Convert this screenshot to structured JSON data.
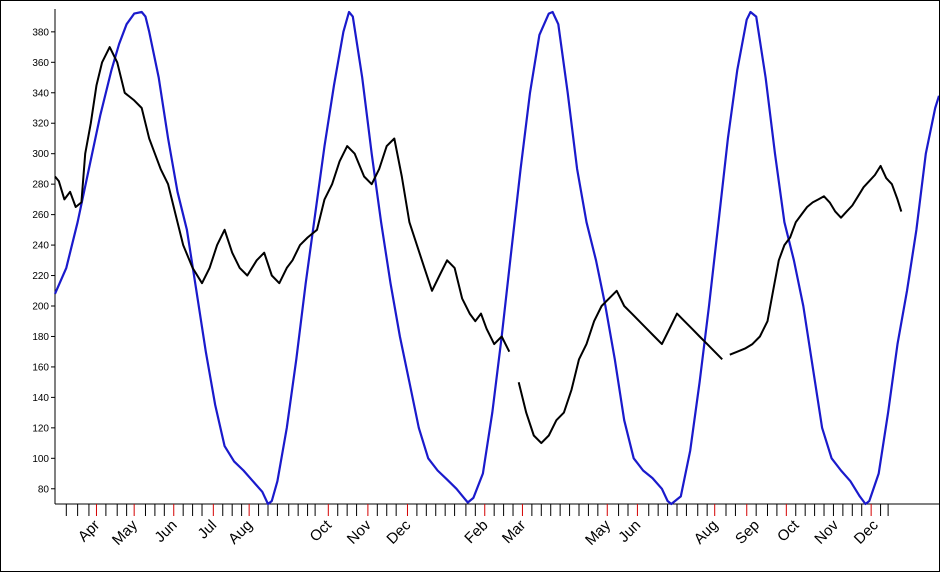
{
  "chart_data": {
    "type": "line",
    "title": "",
    "xlabel": "",
    "ylabel": "",
    "ylim": [
      70,
      395
    ],
    "grid": false,
    "legend": "none",
    "y_ticks": [
      80,
      100,
      120,
      140,
      160,
      180,
      200,
      220,
      240,
      260,
      280,
      300,
      320,
      340,
      360,
      380
    ],
    "x_month_labels": [
      "Apr",
      "May",
      "Jun",
      "Jul",
      "Aug",
      "Oct",
      "Nov",
      "Dec",
      "Feb",
      "Mar",
      "May",
      "Jun",
      "Aug",
      "Sep",
      "Oct",
      "Nov",
      "Dec"
    ],
    "colors": {
      "price_series": "#000000",
      "cycle_series": "#1a1acc",
      "tick_red": "#d40000",
      "tick_black": "#000000"
    },
    "series": [
      {
        "key": "price",
        "x": [
          0,
          4,
          10,
          16,
          22,
          28,
          32,
          38,
          44,
          50,
          58,
          66,
          74,
          84,
          92,
          100,
          106,
          112,
          120,
          128,
          136,
          146,
          156,
          164,
          172,
          180,
          188,
          196,
          204,
          214,
          222,
          230,
          238,
          246,
          252,
          260,
          268,
          278,
          286,
          294,
          302,
          310,
          318,
          328,
          336,
          344,
          352,
          360,
          368,
          376,
          384,
          392,
          400,
          408,
          416,
          424,
          432,
          440,
          446,
          452,
          458,
          466,
          474,
          482,
          492,
          500,
          508,
          516,
          524,
          532,
          540,
          548,
          556,
          564,
          572,
          580,
          588,
          596,
          604,
          612,
          620,
          628,
          636,
          644,
          652,
          660,
          668,
          676,
          684,
          692,
          700,
          708,
          716,
          724,
          732,
          740,
          748,
          756,
          762,
          768,
          774,
          780,
          786,
          792,
          798,
          804,
          810,
          816,
          822,
          828,
          834,
          840,
          846,
          852,
          858,
          864,
          870,
          876,
          882,
          888,
          894,
          898
        ],
        "values": [
          285,
          282,
          270,
          275,
          265,
          268,
          300,
          320,
          345,
          360,
          370,
          360,
          340,
          335,
          330,
          310,
          300,
          290,
          280,
          260,
          240,
          225,
          215,
          225,
          240,
          250,
          235,
          225,
          220,
          230,
          235,
          220,
          215,
          225,
          230,
          240,
          245,
          250,
          270,
          280,
          295,
          305,
          300,
          285,
          280,
          290,
          305,
          310,
          285,
          255,
          240,
          225,
          210,
          220,
          230,
          225,
          205,
          195,
          190,
          195,
          185,
          175,
          180,
          170,
          150,
          130,
          115,
          110,
          115,
          125,
          130,
          145,
          165,
          175,
          190,
          200,
          205,
          210,
          200,
          195,
          190,
          185,
          180,
          175,
          185,
          195,
          190,
          185,
          180,
          175,
          170,
          165,
          168,
          170,
          172,
          175,
          180,
          190,
          210,
          230,
          240,
          245,
          255,
          260,
          265,
          268,
          270,
          272,
          268,
          262,
          258,
          262,
          266,
          272,
          278,
          282,
          286,
          292,
          284,
          280,
          270,
          262
        ],
        "gaps_after_index": [
          63,
          91
        ]
      },
      {
        "key": "cycle",
        "x": [
          0,
          12,
          24,
          36,
          48,
          60,
          68,
          76,
          84,
          92,
          96,
          100,
          110,
          120,
          130,
          140,
          150,
          160,
          170,
          180,
          190,
          200,
          210,
          220,
          226,
          230,
          236,
          246,
          256,
          266,
          276,
          286,
          296,
          306,
          312,
          316,
          326,
          336,
          346,
          356,
          366,
          376,
          386,
          396,
          406,
          416,
          426,
          434,
          438,
          444,
          454,
          464,
          474,
          484,
          494,
          504,
          514,
          524,
          528,
          534,
          544,
          554,
          564,
          574,
          584,
          594,
          604,
          614,
          624,
          634,
          644,
          650,
          654,
          664,
          674,
          684,
          694,
          704,
          714,
          724,
          734,
          738,
          744,
          754,
          764,
          774,
          784,
          794,
          804,
          814,
          824,
          834,
          844,
          854,
          860,
          864,
          874,
          884,
          894,
          904,
          914,
          924,
          934,
          938
        ],
        "values": [
          208,
          225,
          255,
          290,
          325,
          355,
          372,
          385,
          392,
          393,
          390,
          380,
          350,
          310,
          275,
          250,
          210,
          170,
          135,
          108,
          98,
          92,
          85,
          78,
          70,
          72,
          85,
          120,
          165,
          215,
          260,
          305,
          345,
          380,
          393,
          390,
          350,
          300,
          255,
          215,
          180,
          150,
          120,
          100,
          92,
          86,
          80,
          74,
          71,
          74,
          90,
          130,
          180,
          235,
          290,
          340,
          378,
          392,
          393,
          385,
          340,
          290,
          255,
          230,
          200,
          165,
          125,
          100,
          92,
          87,
          80,
          72,
          70,
          75,
          105,
          150,
          200,
          255,
          310,
          355,
          388,
          393,
          390,
          350,
          300,
          255,
          230,
          200,
          160,
          120,
          100,
          92,
          85,
          75,
          70,
          72,
          90,
          130,
          175,
          210,
          250,
          300,
          330,
          338
        ]
      }
    ],
    "x_ticks": [
      {
        "x": 12,
        "c": "b"
      },
      {
        "x": 24,
        "c": "b"
      },
      {
        "x": 36,
        "c": "b"
      },
      {
        "x": 44,
        "c": "r"
      },
      {
        "x": 54,
        "c": "b"
      },
      {
        "x": 66,
        "c": "b"
      },
      {
        "x": 76,
        "c": "b"
      },
      {
        "x": 84,
        "c": "r"
      },
      {
        "x": 96,
        "c": "b"
      },
      {
        "x": 106,
        "c": "b"
      },
      {
        "x": 116,
        "c": "b"
      },
      {
        "x": 126,
        "c": "r"
      },
      {
        "x": 136,
        "c": "b"
      },
      {
        "x": 146,
        "c": "b"
      },
      {
        "x": 156,
        "c": "b"
      },
      {
        "x": 168,
        "c": "r"
      },
      {
        "x": 178,
        "c": "b"
      },
      {
        "x": 188,
        "c": "b"
      },
      {
        "x": 198,
        "c": "b"
      },
      {
        "x": 206,
        "c": "r"
      },
      {
        "x": 216,
        "c": "b"
      },
      {
        "x": 226,
        "c": "b"
      },
      {
        "x": 236,
        "c": "b"
      },
      {
        "x": 248,
        "c": "b"
      },
      {
        "x": 258,
        "c": "b"
      },
      {
        "x": 268,
        "c": "b"
      },
      {
        "x": 276,
        "c": "b"
      },
      {
        "x": 290,
        "c": "r"
      },
      {
        "x": 300,
        "c": "b"
      },
      {
        "x": 310,
        "c": "b"
      },
      {
        "x": 320,
        "c": "b"
      },
      {
        "x": 332,
        "c": "r"
      },
      {
        "x": 342,
        "c": "b"
      },
      {
        "x": 352,
        "c": "b"
      },
      {
        "x": 362,
        "c": "b"
      },
      {
        "x": 374,
        "c": "r"
      },
      {
        "x": 384,
        "c": "b"
      },
      {
        "x": 394,
        "c": "b"
      },
      {
        "x": 404,
        "c": "b"
      },
      {
        "x": 414,
        "c": "b"
      },
      {
        "x": 424,
        "c": "b"
      },
      {
        "x": 436,
        "c": "b"
      },
      {
        "x": 446,
        "c": "b"
      },
      {
        "x": 456,
        "c": "r"
      },
      {
        "x": 466,
        "c": "b"
      },
      {
        "x": 476,
        "c": "b"
      },
      {
        "x": 486,
        "c": "b"
      },
      {
        "x": 496,
        "c": "r"
      },
      {
        "x": 506,
        "c": "b"
      },
      {
        "x": 516,
        "c": "b"
      },
      {
        "x": 526,
        "c": "b"
      },
      {
        "x": 536,
        "c": "b"
      },
      {
        "x": 546,
        "c": "b"
      },
      {
        "x": 556,
        "c": "b"
      },
      {
        "x": 566,
        "c": "b"
      },
      {
        "x": 576,
        "c": "b"
      },
      {
        "x": 586,
        "c": "r"
      },
      {
        "x": 598,
        "c": "b"
      },
      {
        "x": 608,
        "c": "b"
      },
      {
        "x": 618,
        "c": "r"
      },
      {
        "x": 630,
        "c": "b"
      },
      {
        "x": 640,
        "c": "b"
      },
      {
        "x": 650,
        "c": "b"
      },
      {
        "x": 660,
        "c": "b"
      },
      {
        "x": 670,
        "c": "b"
      },
      {
        "x": 682,
        "c": "b"
      },
      {
        "x": 692,
        "c": "b"
      },
      {
        "x": 700,
        "c": "r"
      },
      {
        "x": 712,
        "c": "b"
      },
      {
        "x": 722,
        "c": "b"
      },
      {
        "x": 734,
        "c": "r"
      },
      {
        "x": 744,
        "c": "b"
      },
      {
        "x": 756,
        "c": "b"
      },
      {
        "x": 766,
        "c": "b"
      },
      {
        "x": 776,
        "c": "r"
      },
      {
        "x": 786,
        "c": "b"
      },
      {
        "x": 796,
        "c": "b"
      },
      {
        "x": 806,
        "c": "b"
      },
      {
        "x": 816,
        "c": "b"
      },
      {
        "x": 826,
        "c": "b"
      },
      {
        "x": 836,
        "c": "b"
      },
      {
        "x": 846,
        "c": "b"
      },
      {
        "x": 856,
        "c": "b"
      },
      {
        "x": 866,
        "c": "r"
      },
      {
        "x": 876,
        "c": "b"
      },
      {
        "x": 884,
        "c": "b"
      }
    ]
  }
}
